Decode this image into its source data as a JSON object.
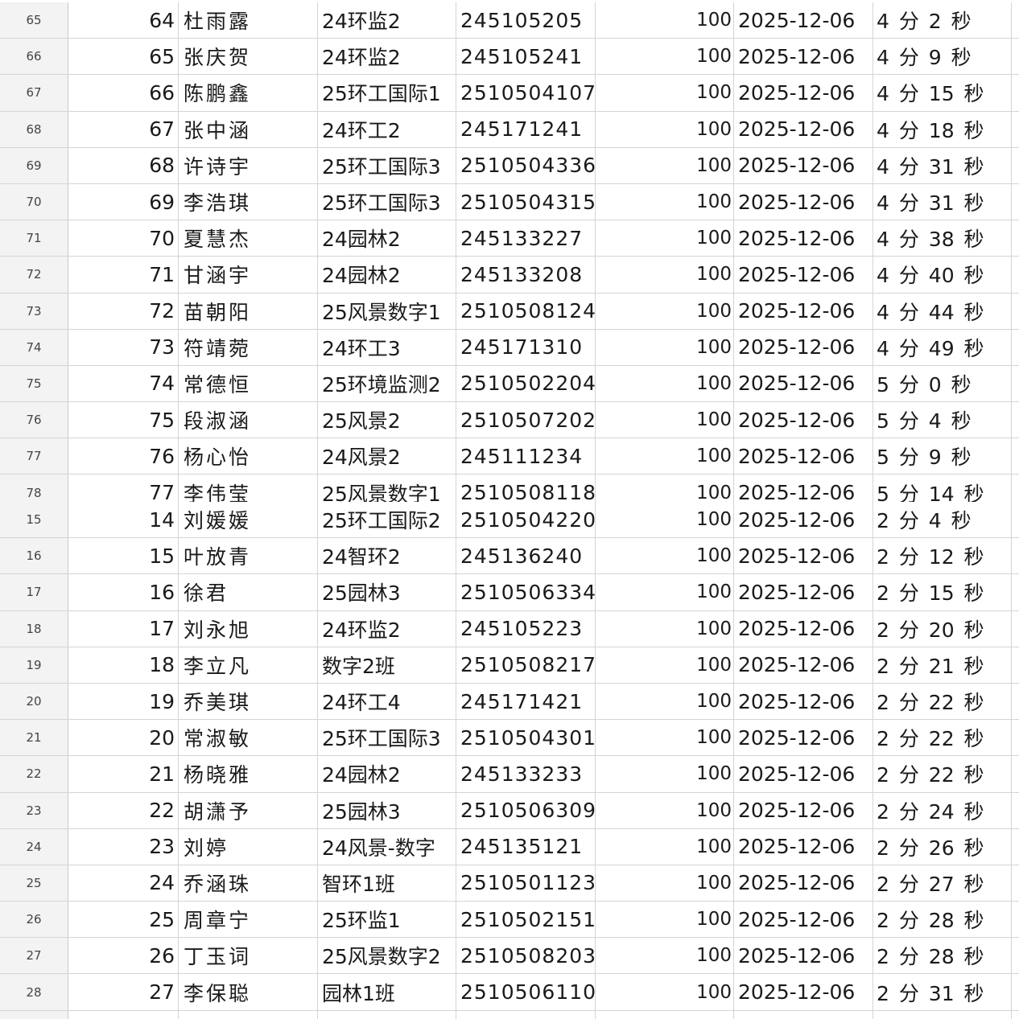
{
  "blocks": [
    {
      "rows": [
        {
          "row": "65",
          "no": "64",
          "name": "杜雨露",
          "class": "24环监2",
          "id": "245105205",
          "score": "100",
          "date": "2025-12-06",
          "time": "4 分 2 秒"
        },
        {
          "row": "66",
          "no": "65",
          "name": "张庆贺",
          "class": "24环监2",
          "id": "245105241",
          "score": "100",
          "date": "2025-12-06",
          "time": "4 分 9 秒"
        },
        {
          "row": "67",
          "no": "66",
          "name": "陈鹏鑫",
          "class": "25环工国际1",
          "id": "2510504107",
          "score": "100",
          "date": "2025-12-06",
          "time": "4 分 15 秒"
        },
        {
          "row": "68",
          "no": "67",
          "name": "张中涵",
          "class": "24环工2",
          "id": "245171241",
          "score": "100",
          "date": "2025-12-06",
          "time": "4 分 18 秒"
        },
        {
          "row": "69",
          "no": "68",
          "name": "许诗宇",
          "class": "25环工国际3",
          "id": "2510504336",
          "score": "100",
          "date": "2025-12-06",
          "time": "4 分 31 秒"
        },
        {
          "row": "70",
          "no": "69",
          "name": "李浩琪",
          "class": "25环工国际3",
          "id": "2510504315",
          "score": "100",
          "date": "2025-12-06",
          "time": "4 分 31 秒"
        },
        {
          "row": "71",
          "no": "70",
          "name": "夏慧杰",
          "class": "24园林2",
          "id": "245133227",
          "score": "100",
          "date": "2025-12-06",
          "time": "4 分 38 秒"
        },
        {
          "row": "72",
          "no": "71",
          "name": "甘涵宇",
          "class": "24园林2",
          "id": "245133208",
          "score": "100",
          "date": "2025-12-06",
          "time": "4 分 40 秒"
        },
        {
          "row": "73",
          "no": "72",
          "name": "苗朝阳",
          "class": "25风景数字1",
          "id": "2510508124",
          "score": "100",
          "date": "2025-12-06",
          "time": "4 分 44 秒"
        },
        {
          "row": "74",
          "no": "73",
          "name": "符靖菀",
          "class": "24环工3",
          "id": "245171310",
          "score": "100",
          "date": "2025-12-06",
          "time": "4 分 49 秒"
        },
        {
          "row": "75",
          "no": "74",
          "name": "常德恒",
          "class": "25环境监测2",
          "id": "2510502204",
          "score": "100",
          "date": "2025-12-06",
          "time": "5 分 0 秒"
        },
        {
          "row": "76",
          "no": "75",
          "name": "段淑涵",
          "class": "25风景2",
          "id": "2510507202",
          "score": "100",
          "date": "2025-12-06",
          "time": "5 分 4 秒"
        },
        {
          "row": "77",
          "no": "76",
          "name": "杨心怡",
          "class": "24风景2",
          "id": "245111234",
          "score": "100",
          "date": "2025-12-06",
          "time": "5 分 9 秒"
        },
        {
          "row": "78",
          "no": "77",
          "name": "李伟莹",
          "class": "25风景数字1",
          "id": "2510508118",
          "score": "100",
          "date": "2025-12-06",
          "time": "5 分 14 秒"
        }
      ]
    },
    {
      "rows": [
        {
          "row": "15",
          "no": "14",
          "name": "刘媛媛",
          "class": "25环工国际2",
          "id": "2510504220",
          "score": "100",
          "date": "2025-12-06",
          "time": "2 分 4 秒"
        },
        {
          "row": "16",
          "no": "15",
          "name": "叶放青",
          "class": "24智环2",
          "id": "245136240",
          "score": "100",
          "date": "2025-12-06",
          "time": "2 分 12 秒"
        },
        {
          "row": "17",
          "no": "16",
          "name": "徐君",
          "class": "25园林3",
          "id": "2510506334",
          "score": "100",
          "date": "2025-12-06",
          "time": "2 分 15 秒"
        },
        {
          "row": "18",
          "no": "17",
          "name": "刘永旭",
          "class": "24环监2",
          "id": "245105223",
          "score": "100",
          "date": "2025-12-06",
          "time": "2 分 20 秒"
        },
        {
          "row": "19",
          "no": "18",
          "name": "李立凡",
          "class": "数字2班",
          "id": "2510508217",
          "score": "100",
          "date": "2025-12-06",
          "time": "2 分 21 秒"
        },
        {
          "row": "20",
          "no": "19",
          "name": "乔美琪",
          "class": "24环工4",
          "id": "245171421",
          "score": "100",
          "date": "2025-12-06",
          "time": "2 分 22 秒"
        },
        {
          "row": "21",
          "no": "20",
          "name": "常淑敏",
          "class": "25环工国际3",
          "id": "2510504301",
          "score": "100",
          "date": "2025-12-06",
          "time": "2 分 22 秒"
        },
        {
          "row": "22",
          "no": "21",
          "name": "杨晓雅",
          "class": "24园林2",
          "id": "245133233",
          "score": "100",
          "date": "2025-12-06",
          "time": "2 分 22 秒"
        },
        {
          "row": "23",
          "no": "22",
          "name": "胡潇予",
          "class": "25园林3",
          "id": "2510506309",
          "score": "100",
          "date": "2025-12-06",
          "time": "2 分 24 秒"
        },
        {
          "row": "24",
          "no": "23",
          "name": "刘婷",
          "class": "24风景-数字",
          "id": "245135121",
          "score": "100",
          "date": "2025-12-06",
          "time": "2 分 26 秒"
        },
        {
          "row": "25",
          "no": "24",
          "name": "乔涵珠",
          "class": "智环1班",
          "id": "2510501123",
          "score": "100",
          "date": "2025-12-06",
          "time": "2 分 27 秒"
        },
        {
          "row": "26",
          "no": "25",
          "name": "周章宁",
          "class": "25环监1",
          "id": "2510502151",
          "score": "100",
          "date": "2025-12-06",
          "time": "2 分 28 秒"
        },
        {
          "row": "27",
          "no": "26",
          "name": "丁玉词",
          "class": "25风景数字2",
          "id": "2510508203",
          "score": "100",
          "date": "2025-12-06",
          "time": "2 分 28 秒"
        },
        {
          "row": "28",
          "no": "27",
          "name": "李保聪",
          "class": "园林1班",
          "id": "2510506110",
          "score": "100",
          "date": "2025-12-06",
          "time": "2 分 31 秒"
        }
      ]
    }
  ]
}
